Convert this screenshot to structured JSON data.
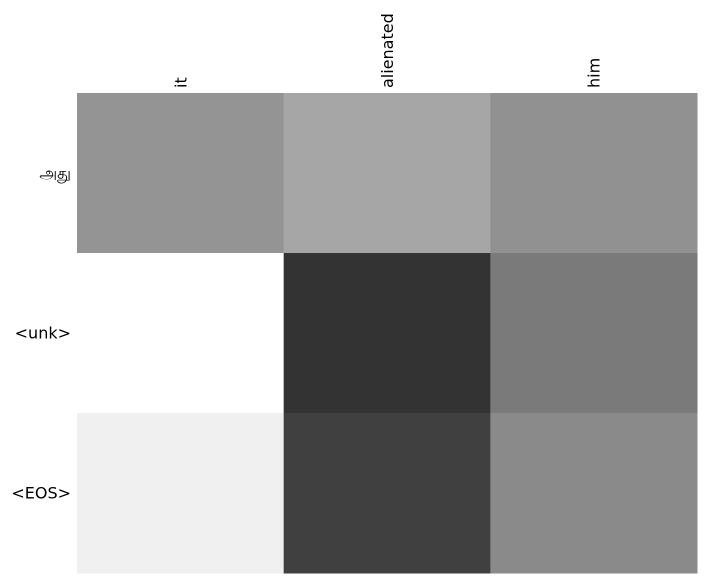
{
  "chart_data": {
    "type": "heatmap",
    "title": "",
    "xlabel": "",
    "ylabel": "",
    "x_categories": [
      "it",
      "alienated",
      "him"
    ],
    "y_categories": [
      "அது",
      "<unk>",
      "<EOS>"
    ],
    "colormap": "gray_r",
    "value_range": [
      0,
      1
    ],
    "values": [
      [
        0.42,
        0.35,
        0.43
      ],
      [
        0.0,
        0.8,
        0.52
      ],
      [
        0.06,
        0.75,
        0.46
      ]
    ],
    "grid": false,
    "legend": "none"
  }
}
